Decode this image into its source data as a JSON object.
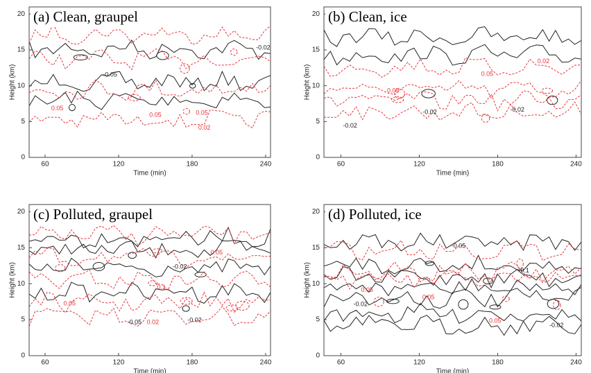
{
  "chart_data": [
    {
      "type": "contour",
      "title": "(a) Clean, graupel",
      "xlabel": "Time (min)",
      "ylabel": "Height (km)",
      "xlim": [
        47,
        244
      ],
      "xticks": [
        60,
        120,
        180,
        240
      ],
      "ylim": [
        0,
        21
      ],
      "yticks": [
        0,
        5,
        10,
        15,
        20
      ],
      "contours": [
        {
          "level": -0.02,
          "color": "#222222",
          "dash": false
        },
        {
          "level": -0.05,
          "color": "#222222",
          "dash": false
        },
        {
          "level": 0.02,
          "color": "#e8333a",
          "dash": true
        },
        {
          "level": 0.05,
          "color": "#e8333a",
          "dash": true
        }
      ],
      "contour_labels": [
        {
          "value": -0.02,
          "x": 238,
          "y": 15.3
        },
        {
          "value": -0.05,
          "x": 113,
          "y": 11.5
        },
        {
          "value": 0.05,
          "x": 70,
          "y": 6.8
        },
        {
          "value": 0.05,
          "x": 150,
          "y": 5.9
        },
        {
          "value": 0.02,
          "x": 190,
          "y": 4.1
        },
        {
          "value": 0.05,
          "x": 188,
          "y": 6.2
        }
      ]
    },
    {
      "type": "contour",
      "title": "(b) Clean, ice",
      "xlabel": "Time (min)",
      "ylabel": "Height (km)",
      "xlim": [
        47,
        244
      ],
      "xticks": [
        60,
        120,
        180,
        240
      ],
      "ylim": [
        0,
        21
      ],
      "yticks": [
        0,
        5,
        10,
        15,
        20
      ],
      "contours": [
        {
          "level": -0.02,
          "color": "#222222",
          "dash": false
        },
        {
          "level": 0.02,
          "color": "#e8333a",
          "dash": true
        },
        {
          "level": 0.05,
          "color": "#e8333a",
          "dash": true
        }
      ],
      "contour_labels": [
        {
          "value": -0.02,
          "x": 67,
          "y": 4.4
        },
        {
          "value": -0.02,
          "x": 128,
          "y": 6.3
        },
        {
          "value": -0.02,
          "x": 195,
          "y": 6.6
        },
        {
          "value": 0.05,
          "x": 100,
          "y": 9.3
        },
        {
          "value": 0.05,
          "x": 172,
          "y": 11.6
        },
        {
          "value": 0.02,
          "x": 215,
          "y": 13.4
        }
      ]
    },
    {
      "type": "contour",
      "title": "(c) Polluted, graupel",
      "xlabel": "Time (min)",
      "ylabel": "Height (km)",
      "xlim": [
        47,
        244
      ],
      "xticks": [
        60,
        120,
        180,
        240
      ],
      "ylim": [
        0,
        21
      ],
      "yticks": [
        0,
        5,
        10,
        15,
        20
      ],
      "contours": [
        {
          "level": -0.02,
          "color": "#222222",
          "dash": false
        },
        {
          "level": -0.05,
          "color": "#222222",
          "dash": false
        },
        {
          "level": 0.02,
          "color": "#e8333a",
          "dash": true
        },
        {
          "level": 0.05,
          "color": "#e8333a",
          "dash": true
        },
        {
          "level": 0.1,
          "color": "#e8333a",
          "dash": true
        }
      ],
      "contour_labels": [
        {
          "value": 0.05,
          "x": 200,
          "y": 14.3
        },
        {
          "value": -0.02,
          "x": 170,
          "y": 12.3
        },
        {
          "value": 0.1,
          "x": 155,
          "y": 9.5
        },
        {
          "value": 0.05,
          "x": 80,
          "y": 7.2
        },
        {
          "value": -0.05,
          "x": 133,
          "y": 4.6
        },
        {
          "value": 0.02,
          "x": 148,
          "y": 4.6
        },
        {
          "value": -0.02,
          "x": 182,
          "y": 4.9
        }
      ]
    },
    {
      "type": "contour",
      "title": "(d) Polluted, ice",
      "xlabel": "Time (min)",
      "ylabel": "Height (km)",
      "xlim": [
        47,
        244
      ],
      "xticks": [
        60,
        120,
        180,
        240
      ],
      "ylim": [
        0,
        21
      ],
      "yticks": [
        0,
        5,
        10,
        15,
        20
      ],
      "contours": [
        {
          "level": -0.02,
          "color": "#222222",
          "dash": false
        },
        {
          "level": -0.05,
          "color": "#222222",
          "dash": false
        },
        {
          "level": -0.1,
          "color": "#222222",
          "dash": false
        },
        {
          "level": 0.05,
          "color": "#e8333a",
          "dash": true
        },
        {
          "level": 0.1,
          "color": "#e8333a",
          "dash": true
        }
      ],
      "contour_labels": [
        {
          "value": -0.05,
          "x": 150,
          "y": 15.2
        },
        {
          "value": -0.1,
          "x": 200,
          "y": 11.8
        },
        {
          "value": 0.05,
          "x": 80,
          "y": 9.1
        },
        {
          "value": 0.05,
          "x": 127,
          "y": 8.1
        },
        {
          "value": -0.02,
          "x": 75,
          "y": 7.1
        },
        {
          "value": 0.05,
          "x": 178,
          "y": 4.8
        },
        {
          "value": -0.02,
          "x": 225,
          "y": 4.2
        }
      ]
    }
  ]
}
